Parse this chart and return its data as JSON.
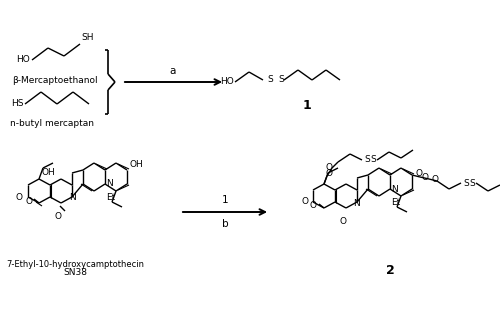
{
  "background": "#ffffff",
  "line_color": "#000000",
  "fig_width": 5.0,
  "fig_height": 3.12,
  "dpi": 100,
  "reactant1_label": "β-Mercaptoethanol",
  "reactant2_label": "n-butyl mercaptan",
  "reactant3_line1": "7-Ethyl-10-hydroxycamptothecin",
  "reactant3_line2": "SN38",
  "compound1_label": "1",
  "compound2_label": "2",
  "arrow_a": "a",
  "arrow_b": "b"
}
